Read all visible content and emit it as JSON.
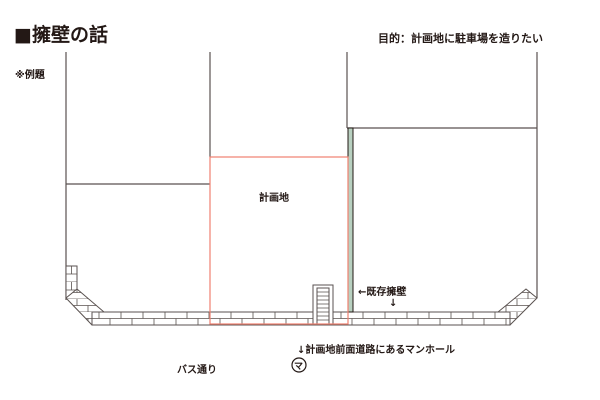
{
  "title": "■擁壁の話",
  "purpose": "目的：計画地に駐車場を造りたい",
  "example_note": "※例題",
  "labels": {
    "plan_site": "計画地",
    "existing_wall": "←既存擁壁",
    "down_arrow": "↓",
    "manhole_note": "↓計画地前面道路にあるマンホール",
    "bus_street": "バス通り",
    "manhole_symbol": "マ"
  },
  "colors": {
    "line": "#5a5250",
    "plan_site_outline": "#f08070",
    "existing_wall_fill": "#b8d0c0"
  }
}
